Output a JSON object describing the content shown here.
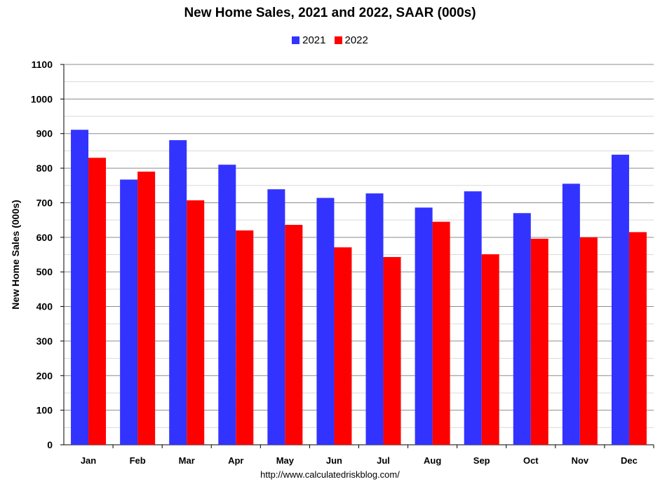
{
  "chart_data": {
    "type": "bar",
    "title": "New Home Sales,  2021 and 2022, SAAR (000s)",
    "ylabel": "New Home Sales (000s)",
    "xlabel": "",
    "categories": [
      "Jan",
      "Feb",
      "Mar",
      "Apr",
      "May",
      "Jun",
      "Jul",
      "Aug",
      "Sep",
      "Oct",
      "Nov",
      "Dec"
    ],
    "series": [
      {
        "name": "2021",
        "color": "#3333ff",
        "values": [
          911,
          767,
          881,
          810,
          739,
          714,
          727,
          686,
          733,
          670,
          755,
          839
        ]
      },
      {
        "name": "2022",
        "color": "#ff0000",
        "values": [
          830,
          790,
          707,
          620,
          636,
          571,
          543,
          645,
          551,
          596,
          600,
          615
        ]
      }
    ],
    "ylim": [
      0,
      1100
    ],
    "yticks": [
      0,
      100,
      200,
      300,
      400,
      500,
      600,
      700,
      800,
      900,
      1000,
      1100
    ],
    "grid": true,
    "legend_position": "top-center"
  },
  "footer": "http://www.calculatedriskblog.com/"
}
